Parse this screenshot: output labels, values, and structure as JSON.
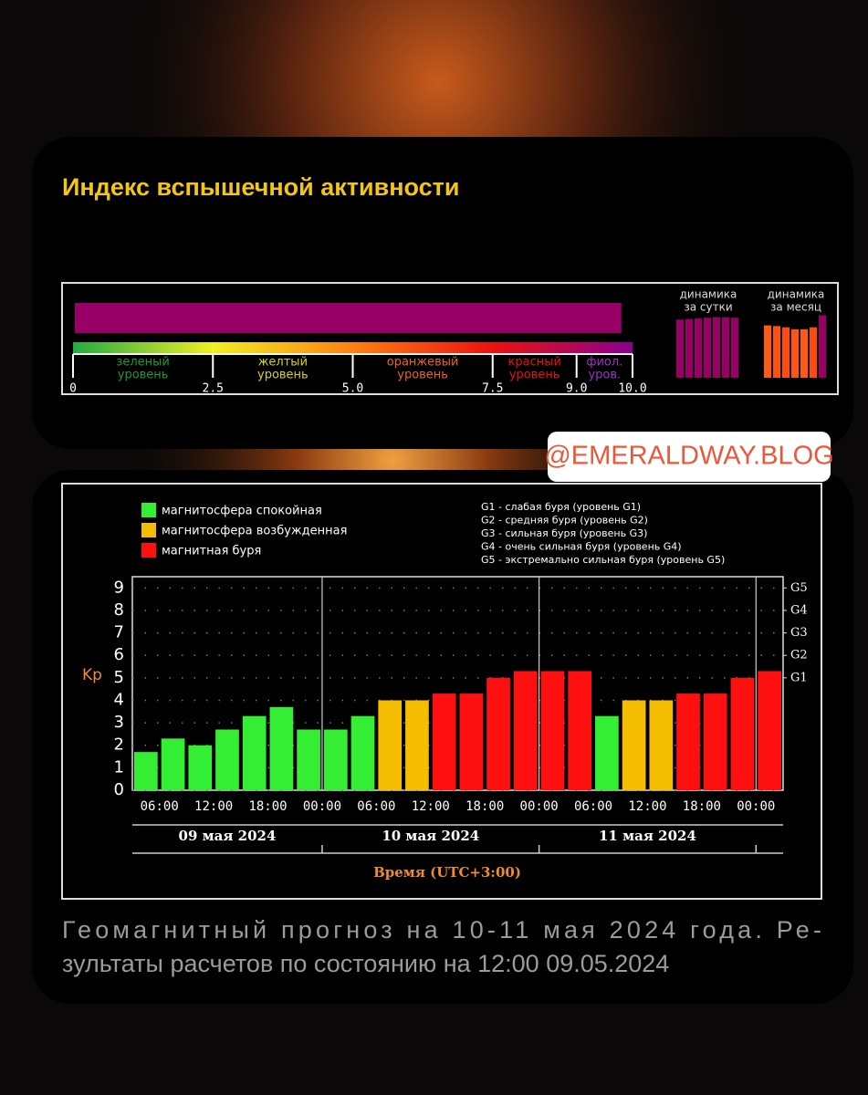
{
  "title": "Индекс вспышечной активности",
  "watermark": "@EMERALDWAY.BLOG",
  "caption": [
    "Геомагнитный прогноз на 10-11 мая 2024 года. Ре-",
    "зультаты расчетов по состоянию на 12:00 09.05.2024"
  ],
  "chart_data": [
    {
      "type": "gauge",
      "value": 9.8,
      "color": "#990066",
      "xlim": [
        0,
        10
      ],
      "xticks": [
        0,
        2.5,
        {
          "value": 5,
          "label": "5.0"
        },
        {
          "value": 7.5,
          "label": "7.5"
        },
        {
          "value": 9,
          "label": "9.0"
        },
        {
          "value": 10,
          "label": "10.0"
        }
      ],
      "gradient": [
        "#22aa44",
        "#f0f020",
        "#ff8010",
        "#ee1010",
        "#8a0090"
      ],
      "levels": [
        {
          "label": [
            "зеленый",
            "уровень"
          ],
          "color": "#1f9a2a"
        },
        {
          "label": [
            "желтый",
            "уровень"
          ],
          "color": "#d6d21a"
        },
        {
          "label": [
            "оранжевый",
            "уровень"
          ],
          "color": "#e8661a"
        },
        {
          "label": [
            "красный",
            "уровень"
          ],
          "color": "#e41515"
        },
        {
          "label": [
            "фиол.",
            "уров."
          ],
          "color": "#9a35c0"
        }
      ]
    },
    {
      "type": "mini-bar",
      "title": [
        "динамика",
        "за сутки"
      ],
      "ylim": [
        0,
        10
      ],
      "values": [
        9.1,
        9.2,
        9.3,
        9.4,
        9.5,
        9.5,
        9.4
      ],
      "colors": [
        "#990066",
        "#990066",
        "#990066",
        "#990066",
        "#990066",
        "#990066",
        "#990066"
      ]
    },
    {
      "type": "mini-bar",
      "title": [
        "динамика",
        "за месяц"
      ],
      "ylim": [
        0,
        10
      ],
      "values": [
        8.2,
        8.1,
        7.9,
        7.6,
        7.6,
        7.9,
        9.8
      ],
      "colors": [
        "#ff5a10",
        "#ff5010",
        "#ff4a10",
        "#ff5510",
        "#ff5a10",
        "#ff4a10",
        "#990066"
      ]
    },
    {
      "type": "bar",
      "ylabel": "Kp",
      "xlabel": "Время (UTC+3:00)",
      "values": [
        1.7,
        2.3,
        2.0,
        2.7,
        3.3,
        3.7,
        2.7,
        2.7,
        3.3,
        4.0,
        4.0,
        4.3,
        4.3,
        5.0,
        5.3,
        5.3,
        5.3,
        3.3,
        4.0,
        4.0,
        4.3,
        4.3,
        5.0,
        5.3
      ],
      "colors": [
        "#33ee33",
        "#33ee33",
        "#33ee33",
        "#33ee33",
        "#33ee33",
        "#33ee33",
        "#33ee33",
        "#33ee33",
        "#33ee33",
        "#f5bd00",
        "#f5bd00",
        "#ff1010",
        "#ff1010",
        "#ff1010",
        "#ff1010",
        "#ff1010",
        "#ff1010",
        "#33ee33",
        "#f5bd00",
        "#f5bd00",
        "#ff1010",
        "#ff1010",
        "#ff1010",
        "#ff1010"
      ],
      "ylim": [
        0,
        9.5
      ],
      "yticks": [
        0,
        1,
        2,
        3,
        4,
        5,
        6,
        7,
        8,
        9
      ],
      "y2ticks": [
        {
          "value": 5,
          "label": "G1"
        },
        {
          "value": 6,
          "label": "G2"
        },
        {
          "value": 7,
          "label": "G3"
        },
        {
          "value": 8,
          "label": "G4"
        },
        {
          "value": 9,
          "label": "G5"
        }
      ],
      "xtick_labels": [
        "06:00",
        "12:00",
        "18:00",
        "00:00",
        "06:00",
        "12:00",
        "18:00",
        "00:00",
        "06:00",
        "12:00",
        "18:00",
        "00:00"
      ],
      "days": [
        "09 мая 2024",
        "10 мая 2024",
        "11 мая 2024"
      ],
      "grid": true,
      "legend": [
        {
          "name": "магнитосфера спокойная",
          "color": "#33ee33"
        },
        {
          "name": "магнитосфера возбужденная",
          "color": "#f5bd00"
        },
        {
          "name": "магнитная буря",
          "color": "#ff1010"
        }
      ],
      "notes": [
        "G1 - слабая буря (уровень G1)",
        "G2 - средняя буря (уровень G2)",
        "G3 - сильная буря (уровень G3)",
        "G4 - очень сильная буря (уровень G4)",
        "G5 - экстремально сильная буря (уровень G5)"
      ]
    }
  ]
}
